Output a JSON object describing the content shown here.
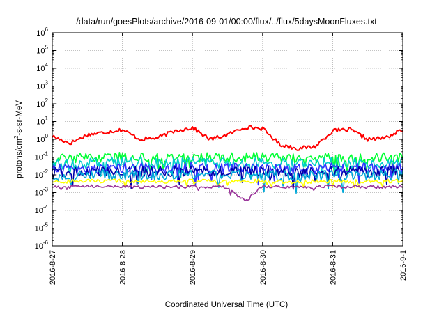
{
  "chart_data": {
    "type": "line",
    "title": "/data/run/goesPlots/archive/2016-09-01/00:00/flux/../flux/5daysMoonFluxes.txt",
    "xlabel": "Coordinated Universal Time (UTC)",
    "ylabel": "protons/cm2-s-sr-MeV",
    "ylabel_parts": {
      "base": "protons/cm",
      "sup": "2",
      "rest": "-s-sr-MeV"
    },
    "yscale": "log",
    "ylim": [
      1e-06,
      1000000.0
    ],
    "xlim": [
      "2016-08-27 00:00",
      "2016-09-01 00:00"
    ],
    "grid": true,
    "x_ticks": [
      "2016-8-27",
      "2016-8-28",
      "2016-8-29",
      "2016-8-30",
      "2016-8-31",
      "2016-9-1"
    ],
    "y_ticks": [
      {
        "base": "10",
        "exp": "-6"
      },
      {
        "base": "10",
        "exp": "-5"
      },
      {
        "base": "10",
        "exp": "-4"
      },
      {
        "base": "10",
        "exp": "-3"
      },
      {
        "base": "10",
        "exp": "-2"
      },
      {
        "base": "10",
        "exp": "-1"
      },
      {
        "base": "10",
        "exp": "0"
      },
      {
        "base": "10",
        "exp": "1"
      },
      {
        "base": "10",
        "exp": "2"
      },
      {
        "base": "10",
        "exp": "3"
      },
      {
        "base": "10",
        "exp": "4"
      },
      {
        "base": "10",
        "exp": "5"
      },
      {
        "base": "10",
        "exp": "6"
      }
    ],
    "series": [
      {
        "color": "#ff0000",
        "x": [
          "2016-08-27 00:00",
          "2016-08-27 06:00",
          "2016-08-27 12:00",
          "2016-08-27 18:00",
          "2016-08-28 00:00",
          "2016-08-28 06:00",
          "2016-08-28 12:00",
          "2016-08-28 18:00",
          "2016-08-29 00:00",
          "2016-08-29 06:00",
          "2016-08-29 12:00",
          "2016-08-29 18:00",
          "2016-08-30 00:00",
          "2016-08-30 06:00",
          "2016-08-30 12:00",
          "2016-08-30 18:00",
          "2016-08-31 00:00",
          "2016-08-31 06:00",
          "2016-08-31 12:00",
          "2016-08-31 18:00",
          "2016-09-01 00:00"
        ],
        "values": [
          1.5,
          0.6,
          1.8,
          2.5,
          3.5,
          1.0,
          1.2,
          3.0,
          4.5,
          1.0,
          1.8,
          5.0,
          4.0,
          0.5,
          0.3,
          0.4,
          3.0,
          3.5,
          1.0,
          1.2,
          3.5
        ]
      },
      {
        "color": "#00ff33",
        "x": [
          "2016-08-27 00:00",
          "2016-08-27 12:00",
          "2016-08-28 00:00",
          "2016-08-28 12:00",
          "2016-08-29 00:00",
          "2016-08-29 12:00",
          "2016-08-30 00:00",
          "2016-08-30 12:00",
          "2016-08-31 00:00",
          "2016-08-31 12:00",
          "2016-09-01 00:00"
        ],
        "values": [
          0.08,
          0.09,
          0.1,
          0.09,
          0.1,
          0.09,
          0.1,
          0.08,
          0.1,
          0.09,
          0.1
        ]
      },
      {
        "color": "#00cccc",
        "x": [
          "2016-08-27 00:00",
          "2016-08-27 12:00",
          "2016-08-28 00:00",
          "2016-08-28 12:00",
          "2016-08-29 00:00",
          "2016-08-29 12:00",
          "2016-08-30 00:00",
          "2016-08-30 12:00",
          "2016-08-31 00:00",
          "2016-08-31 12:00",
          "2016-09-01 00:00"
        ],
        "values": [
          0.04,
          0.045,
          0.05,
          0.045,
          0.05,
          0.045,
          0.05,
          0.04,
          0.05,
          0.045,
          0.05
        ]
      },
      {
        "color": "#3333ff",
        "x": [
          "2016-08-27 00:00",
          "2016-08-27 12:00",
          "2016-08-28 00:00",
          "2016-08-28 12:00",
          "2016-08-29 00:00",
          "2016-08-29 12:00",
          "2016-08-30 00:00",
          "2016-08-30 12:00",
          "2016-08-31 00:00",
          "2016-08-31 12:00",
          "2016-09-01 00:00"
        ],
        "values": [
          0.02,
          0.022,
          0.025,
          0.022,
          0.025,
          0.022,
          0.025,
          0.02,
          0.025,
          0.022,
          0.025
        ]
      },
      {
        "color": "#0000aa",
        "x": [
          "2016-08-27 00:00",
          "2016-08-27 12:00",
          "2016-08-28 00:00",
          "2016-08-28 12:00",
          "2016-08-29 00:00",
          "2016-08-29 12:00",
          "2016-08-30 00:00",
          "2016-08-30 12:00",
          "2016-08-31 00:00",
          "2016-08-31 12:00",
          "2016-09-01 00:00"
        ],
        "values": [
          0.013,
          0.015,
          0.017,
          0.015,
          0.017,
          0.015,
          0.017,
          0.013,
          0.017,
          0.015,
          0.017
        ]
      },
      {
        "color": "#00a8d8",
        "x": [
          "2016-08-27 00:00",
          "2016-08-27 12:00",
          "2016-08-28 00:00",
          "2016-08-28 12:00",
          "2016-08-29 00:00",
          "2016-08-29 12:00",
          "2016-08-30 00:00",
          "2016-08-30 12:00",
          "2016-08-31 00:00",
          "2016-08-31 12:00",
          "2016-09-01 00:00"
        ],
        "values": [
          0.008,
          0.009,
          0.01,
          0.009,
          0.01,
          0.009,
          0.01,
          0.008,
          0.01,
          0.009,
          0.01
        ]
      },
      {
        "color": "#ffff00",
        "x": [
          "2016-08-27 00:00",
          "2016-08-27 12:00",
          "2016-08-28 00:00",
          "2016-08-28 12:00",
          "2016-08-29 00:00",
          "2016-08-29 12:00",
          "2016-08-30 00:00",
          "2016-08-30 12:00",
          "2016-08-31 00:00",
          "2016-08-31 12:00",
          "2016-09-01 00:00"
        ],
        "values": [
          0.004,
          0.0045,
          0.0045,
          0.0042,
          0.0045,
          0.0042,
          0.0045,
          0.004,
          0.0045,
          0.0042,
          0.0045
        ]
      },
      {
        "color": "#993399",
        "x": [
          "2016-08-27 00:00",
          "2016-08-27 12:00",
          "2016-08-28 00:00",
          "2016-08-28 12:00",
          "2016-08-29 00:00",
          "2016-08-29 12:00",
          "2016-08-29 18:00",
          "2016-08-30 00:00",
          "2016-08-30 12:00",
          "2016-08-31 00:00",
          "2016-08-31 12:00",
          "2016-09-01 00:00"
        ],
        "values": [
          0.002,
          0.0022,
          0.0022,
          0.002,
          0.0022,
          0.002,
          0.0003,
          0.0022,
          0.002,
          0.0022,
          0.002,
          0.0022
        ]
      }
    ]
  }
}
